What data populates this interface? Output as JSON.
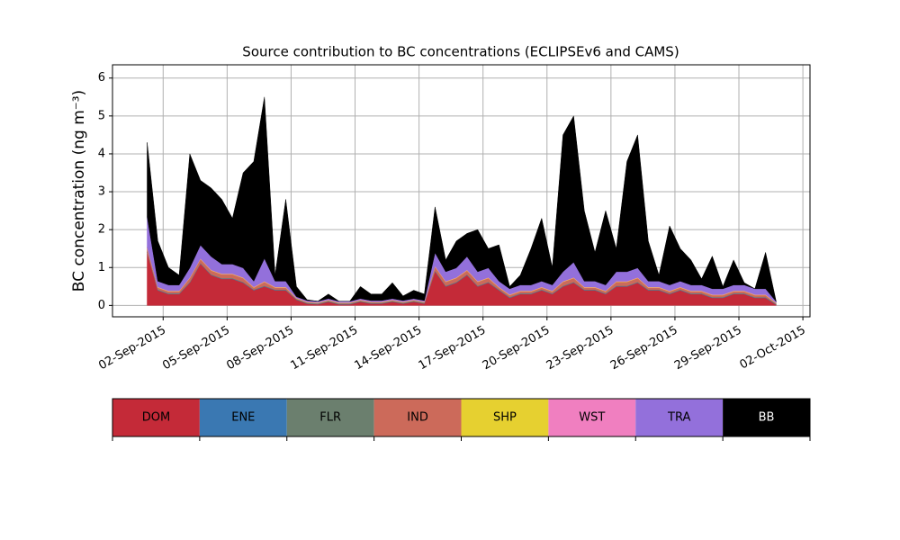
{
  "chart_data": {
    "type": "stacked_area",
    "title": "Source contribution to BC concentrations (ECLIPSEv6 and CAMS)",
    "y_label": "BC concentration (ng m⁻³)",
    "x": [
      "2015-09-01T06:00",
      "2015-09-01T18:00",
      "2015-09-02T06:00",
      "2015-09-02T18:00",
      "2015-09-03T06:00",
      "2015-09-03T18:00",
      "2015-09-04T06:00",
      "2015-09-04T18:00",
      "2015-09-05T06:00",
      "2015-09-05T18:00",
      "2015-09-06T06:00",
      "2015-09-06T18:00",
      "2015-09-07T06:00",
      "2015-09-07T18:00",
      "2015-09-08T06:00",
      "2015-09-08T18:00",
      "2015-09-09T06:00",
      "2015-09-09T18:00",
      "2015-09-10T06:00",
      "2015-09-10T18:00",
      "2015-09-11T06:00",
      "2015-09-11T18:00",
      "2015-09-12T06:00",
      "2015-09-12T18:00",
      "2015-09-13T06:00",
      "2015-09-13T18:00",
      "2015-09-14T06:00",
      "2015-09-14T18:00",
      "2015-09-15T06:00",
      "2015-09-15T18:00",
      "2015-09-16T06:00",
      "2015-09-16T18:00",
      "2015-09-17T06:00",
      "2015-09-17T18:00",
      "2015-09-18T06:00",
      "2015-09-18T18:00",
      "2015-09-19T06:00",
      "2015-09-19T18:00",
      "2015-09-20T06:00",
      "2015-09-20T18:00",
      "2015-09-21T06:00",
      "2015-09-21T18:00",
      "2015-09-22T06:00",
      "2015-09-22T18:00",
      "2015-09-23T06:00",
      "2015-09-23T18:00",
      "2015-09-24T06:00",
      "2015-09-24T18:00",
      "2015-09-25T06:00",
      "2015-09-25T18:00",
      "2015-09-26T06:00",
      "2015-09-26T18:00",
      "2015-09-27T06:00",
      "2015-09-27T18:00",
      "2015-09-28T06:00",
      "2015-09-28T18:00",
      "2015-09-29T06:00",
      "2015-09-29T18:00",
      "2015-09-30T06:00",
      "2015-09-30T18:00"
    ],
    "series": [
      {
        "name": "DOM",
        "color": "#c42a38",
        "values": [
          1.4,
          0.4,
          0.3,
          0.3,
          0.6,
          1.1,
          0.8,
          0.7,
          0.7,
          0.6,
          0.4,
          0.5,
          0.4,
          0.4,
          0.15,
          0.05,
          0.03,
          0.1,
          0.03,
          0.03,
          0.1,
          0.05,
          0.05,
          0.1,
          0.05,
          0.1,
          0.05,
          0.9,
          0.5,
          0.6,
          0.8,
          0.5,
          0.6,
          0.4,
          0.2,
          0.3,
          0.3,
          0.4,
          0.3,
          0.5,
          0.6,
          0.4,
          0.4,
          0.3,
          0.5,
          0.5,
          0.6,
          0.4,
          0.4,
          0.3,
          0.4,
          0.3,
          0.3,
          0.2,
          0.2,
          0.3,
          0.3,
          0.2,
          0.2,
          0.02
        ]
      },
      {
        "name": "ENE",
        "color": "#3a78b2",
        "values": [
          0.01,
          0.01,
          0.01,
          0.01,
          0.01,
          0.01,
          0.01,
          0.01,
          0.01,
          0.01,
          0.01,
          0.01,
          0.01,
          0.01,
          0.01,
          0.01,
          0.01,
          0.01,
          0.01,
          0.01,
          0.01,
          0.01,
          0.01,
          0.01,
          0.01,
          0.01,
          0.01,
          0.01,
          0.01,
          0.01,
          0.01,
          0.01,
          0.01,
          0.01,
          0.01,
          0.01,
          0.01,
          0.01,
          0.01,
          0.01,
          0.01,
          0.01,
          0.01,
          0.01,
          0.01,
          0.01,
          0.01,
          0.01,
          0.01,
          0.01,
          0.01,
          0.01,
          0.01,
          0.01,
          0.01,
          0.01,
          0.01,
          0.01,
          0.01,
          0.01
        ]
      },
      {
        "name": "FLR",
        "color": "#6b7f6e",
        "values": [
          0.01,
          0.01,
          0.01,
          0.01,
          0.01,
          0.01,
          0.01,
          0.01,
          0.01,
          0.01,
          0.01,
          0.01,
          0.01,
          0.01,
          0.01,
          0.01,
          0.01,
          0.01,
          0.01,
          0.01,
          0.01,
          0.01,
          0.01,
          0.01,
          0.01,
          0.01,
          0.01,
          0.01,
          0.01,
          0.01,
          0.01,
          0.01,
          0.01,
          0.01,
          0.01,
          0.01,
          0.01,
          0.01,
          0.01,
          0.01,
          0.01,
          0.01,
          0.01,
          0.01,
          0.01,
          0.01,
          0.01,
          0.01,
          0.01,
          0.01,
          0.01,
          0.01,
          0.01,
          0.01,
          0.01,
          0.01,
          0.01,
          0.01,
          0.01,
          0.01
        ]
      },
      {
        "name": "IND",
        "color": "#cc6a5a",
        "values": [
          0.1,
          0.05,
          0.05,
          0.05,
          0.1,
          0.1,
          0.1,
          0.1,
          0.1,
          0.1,
          0.05,
          0.1,
          0.05,
          0.05,
          0.01,
          0.01,
          0.01,
          0.01,
          0.01,
          0.01,
          0.01,
          0.01,
          0.01,
          0.01,
          0.01,
          0.01,
          0.01,
          0.1,
          0.1,
          0.1,
          0.1,
          0.1,
          0.1,
          0.05,
          0.05,
          0.05,
          0.05,
          0.05,
          0.05,
          0.1,
          0.1,
          0.05,
          0.05,
          0.05,
          0.1,
          0.1,
          0.1,
          0.05,
          0.05,
          0.05,
          0.05,
          0.05,
          0.05,
          0.05,
          0.05,
          0.05,
          0.05,
          0.05,
          0.05,
          0.01
        ]
      },
      {
        "name": "SHP",
        "color": "#e6d030",
        "values": [
          0.01,
          0.01,
          0.01,
          0.01,
          0.01,
          0.01,
          0.01,
          0.01,
          0.01,
          0.01,
          0.01,
          0.01,
          0.01,
          0.01,
          0.01,
          0.01,
          0.01,
          0.01,
          0.01,
          0.01,
          0.01,
          0.01,
          0.01,
          0.01,
          0.01,
          0.01,
          0.01,
          0.01,
          0.01,
          0.01,
          0.01,
          0.01,
          0.01,
          0.01,
          0.01,
          0.01,
          0.01,
          0.01,
          0.01,
          0.01,
          0.01,
          0.01,
          0.01,
          0.01,
          0.01,
          0.01,
          0.01,
          0.01,
          0.01,
          0.01,
          0.01,
          0.01,
          0.01,
          0.01,
          0.01,
          0.01,
          0.01,
          0.01,
          0.01,
          0.01
        ]
      },
      {
        "name": "WST",
        "color": "#f07fc0",
        "values": [
          0.01,
          0.01,
          0.01,
          0.01,
          0.01,
          0.01,
          0.01,
          0.01,
          0.01,
          0.01,
          0.01,
          0.01,
          0.01,
          0.01,
          0.01,
          0.01,
          0.01,
          0.01,
          0.01,
          0.01,
          0.01,
          0.01,
          0.01,
          0.01,
          0.01,
          0.01,
          0.01,
          0.01,
          0.01,
          0.01,
          0.01,
          0.01,
          0.01,
          0.01,
          0.01,
          0.01,
          0.01,
          0.01,
          0.01,
          0.01,
          0.01,
          0.01,
          0.01,
          0.01,
          0.01,
          0.01,
          0.01,
          0.01,
          0.01,
          0.01,
          0.01,
          0.01,
          0.01,
          0.01,
          0.01,
          0.01,
          0.01,
          0.01,
          0.01,
          0.01
        ]
      },
      {
        "name": "TRA",
        "color": "#9370db",
        "values": [
          0.8,
          0.15,
          0.15,
          0.15,
          0.25,
          0.35,
          0.35,
          0.25,
          0.25,
          0.25,
          0.15,
          0.6,
          0.15,
          0.15,
          0.03,
          0.03,
          0.03,
          0.03,
          0.03,
          0.03,
          0.03,
          0.03,
          0.03,
          0.03,
          0.03,
          0.03,
          0.03,
          0.35,
          0.25,
          0.25,
          0.35,
          0.25,
          0.25,
          0.15,
          0.15,
          0.15,
          0.15,
          0.15,
          0.15,
          0.25,
          0.4,
          0.15,
          0.15,
          0.15,
          0.25,
          0.25,
          0.25,
          0.15,
          0.15,
          0.15,
          0.15,
          0.15,
          0.15,
          0.15,
          0.15,
          0.15,
          0.15,
          0.15,
          0.15,
          0.03
        ]
      },
      {
        "name": "BB",
        "color": "#000000",
        "values": [
          1.96,
          1.06,
          0.46,
          0.26,
          3.01,
          1.71,
          1.81,
          1.71,
          1.21,
          2.51,
          3.16,
          4.26,
          0.16,
          2.16,
          0.27,
          0.02,
          0,
          0.12,
          0,
          0,
          0.32,
          0.17,
          0.17,
          0.42,
          0.12,
          0.22,
          0.17,
          1.21,
          0.31,
          0.71,
          0.61,
          1.11,
          0.51,
          0.96,
          0.06,
          0.26,
          0.96,
          1.66,
          0.46,
          3.61,
          3.86,
          1.86,
          0.76,
          1.96,
          0.61,
          2.91,
          3.51,
          1.06,
          0.16,
          1.56,
          0.86,
          0.66,
          0.16,
          0.86,
          0.06,
          0.66,
          0.06,
          0,
          0.96,
          0
        ]
      }
    ],
    "xlim": [
      "2015-08-30T15:00",
      "2015-10-02T08:00"
    ],
    "xticks": [
      {
        "value": "2015-09-02T00:00",
        "label": "02-Sep-2015"
      },
      {
        "value": "2015-09-05T00:00",
        "label": "05-Sep-2015"
      },
      {
        "value": "2015-09-08T00:00",
        "label": "08-Sep-2015"
      },
      {
        "value": "2015-09-11T00:00",
        "label": "11-Sep-2015"
      },
      {
        "value": "2015-09-14T00:00",
        "label": "14-Sep-2015"
      },
      {
        "value": "2015-09-17T00:00",
        "label": "17-Sep-2015"
      },
      {
        "value": "2015-09-20T00:00",
        "label": "20-Sep-2015"
      },
      {
        "value": "2015-09-23T00:00",
        "label": "23-Sep-2015"
      },
      {
        "value": "2015-09-26T00:00",
        "label": "26-Sep-2015"
      },
      {
        "value": "2015-09-29T00:00",
        "label": "29-Sep-2015"
      },
      {
        "value": "2015-10-02T00:00",
        "label": "02-Oct-2015"
      }
    ],
    "ylim": [
      -0.3,
      6.35
    ],
    "yticks": [
      0,
      1,
      2,
      3,
      4,
      5,
      6
    ],
    "grid": true
  }
}
